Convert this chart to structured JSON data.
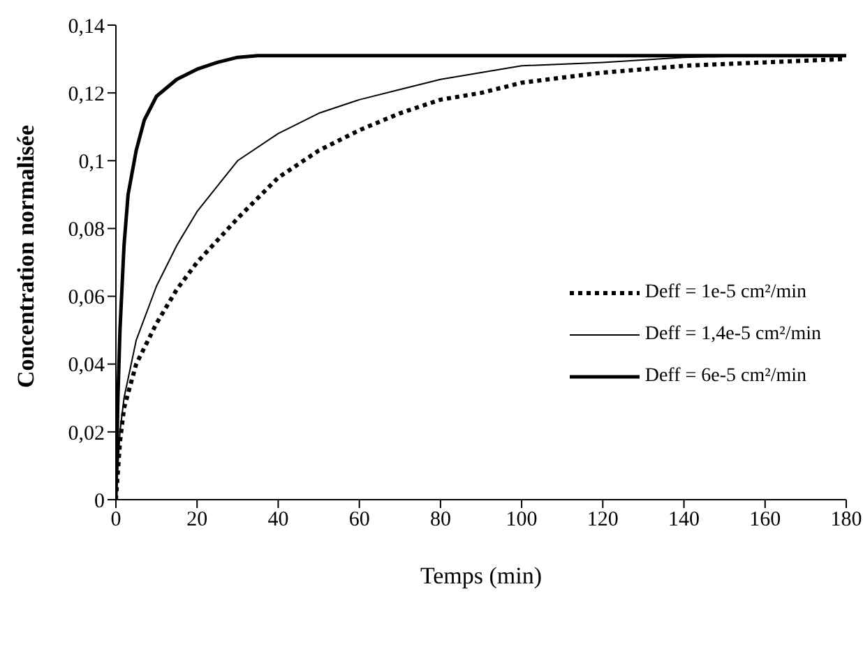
{
  "chart_data": {
    "type": "line",
    "xlabel": "Temps (min)",
    "ylabel": "Concentration normalisée",
    "xlim": [
      0,
      180
    ],
    "xticks": [
      0,
      20,
      40,
      60,
      80,
      100,
      120,
      140,
      160,
      180
    ],
    "ylim": [
      0,
      0.14
    ],
    "yticks": [
      0,
      {
        "value": 0.02,
        "label": "0,02"
      },
      {
        "value": 0.04,
        "label": "0,04"
      },
      {
        "value": 0.06,
        "label": "0,06"
      },
      {
        "value": 0.08,
        "label": "0,08"
      },
      {
        "value": 0.1,
        "label": "0,1"
      },
      {
        "value": 0.12,
        "label": "0,12"
      },
      {
        "value": 0.14,
        "label": "0,14"
      }
    ],
    "grid": false,
    "legend": "right",
    "marker": "none",
    "series": [
      {
        "name": "Deff = 1e-5 cm²/min",
        "color": "#000000",
        "line_style": "dotted",
        "x": [
          0,
          1,
          2,
          5,
          10,
          15,
          20,
          30,
          40,
          50,
          60,
          70,
          80,
          90,
          100,
          120,
          140,
          160,
          180
        ],
        "values": [
          0,
          0.017,
          0.027,
          0.04,
          0.052,
          0.062,
          0.07,
          0.083,
          0.095,
          0.103,
          0.109,
          0.114,
          0.118,
          0.12,
          0.123,
          0.126,
          0.128,
          0.129,
          0.13
        ]
      },
      {
        "name": "Deff = 1,4e-5 cm²/min",
        "color": "#000000",
        "line_style": "solid",
        "x": [
          0,
          1,
          2,
          5,
          10,
          15,
          20,
          30,
          40,
          50,
          60,
          70,
          80,
          90,
          100,
          120,
          140,
          160,
          180
        ],
        "values": [
          0,
          0.02,
          0.03,
          0.047,
          0.063,
          0.075,
          0.085,
          0.1,
          0.108,
          0.114,
          0.118,
          0.121,
          0.124,
          0.126,
          0.128,
          0.129,
          0.1305,
          0.131,
          0.131
        ]
      },
      {
        "name": "Deff = 6e-5 cm²/min",
        "color": "#000000",
        "line_style": "solid",
        "x": [
          0,
          0.5,
          1,
          2,
          3,
          5,
          7,
          10,
          15,
          20,
          25,
          30,
          35,
          180
        ],
        "values": [
          0,
          0.03,
          0.05,
          0.075,
          0.09,
          0.103,
          0.112,
          0.119,
          0.124,
          0.127,
          0.129,
          0.1305,
          0.131,
          0.131
        ]
      }
    ]
  }
}
